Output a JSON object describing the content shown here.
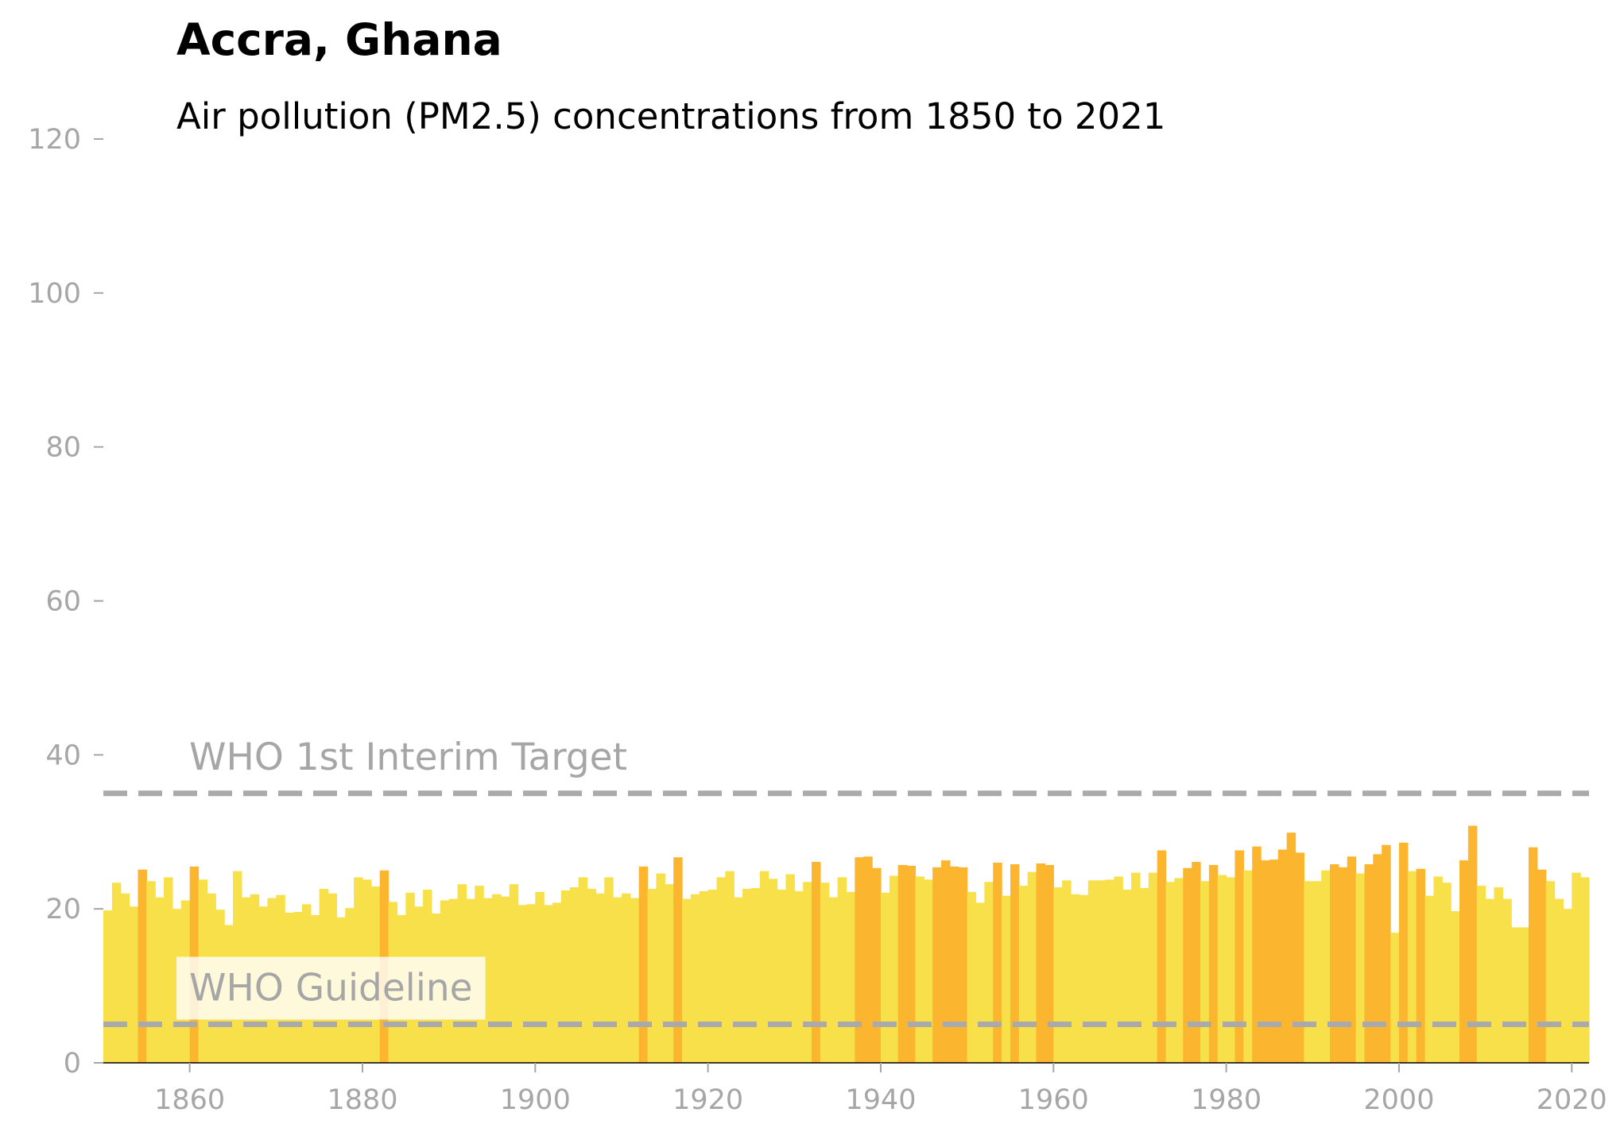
{
  "chart_data": {
    "type": "bar",
    "title": "Accra, Ghana",
    "subtitle": "Air pollution (PM2.5) concentrations from 1850 to 2021",
    "xlabel": "",
    "ylabel": "",
    "xlim": [
      1850,
      2022
    ],
    "ylim": [
      0,
      120
    ],
    "x_ticks": [
      1860,
      1880,
      1900,
      1920,
      1940,
      1960,
      1980,
      2000,
      2020
    ],
    "y_ticks": [
      0,
      20,
      40,
      60,
      80,
      100,
      120
    ],
    "grid": false,
    "colors": {
      "base": "#f7e04a",
      "high": "#fbb52e",
      "reference": "#aaaaaa",
      "tick": "#a6a6a6"
    },
    "reference_lines": [
      {
        "label": "WHO 1st Interim Target",
        "value": 35
      },
      {
        "label": "WHO Guideline",
        "value": 5
      }
    ],
    "years": [
      1850,
      1851,
      1852,
      1853,
      1854,
      1855,
      1856,
      1857,
      1858,
      1859,
      1860,
      1861,
      1862,
      1863,
      1864,
      1865,
      1866,
      1867,
      1868,
      1869,
      1870,
      1871,
      1872,
      1873,
      1874,
      1875,
      1876,
      1877,
      1878,
      1879,
      1880,
      1881,
      1882,
      1883,
      1884,
      1885,
      1886,
      1887,
      1888,
      1889,
      1890,
      1891,
      1892,
      1893,
      1894,
      1895,
      1896,
      1897,
      1898,
      1899,
      1900,
      1901,
      1902,
      1903,
      1904,
      1905,
      1906,
      1907,
      1908,
      1909,
      1910,
      1911,
      1912,
      1913,
      1914,
      1915,
      1916,
      1917,
      1918,
      1919,
      1920,
      1921,
      1922,
      1923,
      1924,
      1925,
      1926,
      1927,
      1928,
      1929,
      1930,
      1931,
      1932,
      1933,
      1934,
      1935,
      1936,
      1937,
      1938,
      1939,
      1940,
      1941,
      1942,
      1943,
      1944,
      1945,
      1946,
      1947,
      1948,
      1949,
      1950,
      1951,
      1952,
      1953,
      1954,
      1955,
      1956,
      1957,
      1958,
      1959,
      1960,
      1961,
      1962,
      1963,
      1964,
      1965,
      1966,
      1967,
      1968,
      1969,
      1970,
      1971,
      1972,
      1973,
      1974,
      1975,
      1976,
      1977,
      1978,
      1979,
      1980,
      1981,
      1982,
      1983,
      1984,
      1985,
      1986,
      1987,
      1988,
      1989,
      1990,
      1991,
      1992,
      1993,
      1994,
      1995,
      1996,
      1997,
      1998,
      1999,
      2000,
      2001,
      2002,
      2003,
      2004,
      2005,
      2006,
      2007,
      2008,
      2009,
      2010,
      2011,
      2012,
      2013,
      2014,
      2015,
      2016,
      2017,
      2018,
      2019,
      2020,
      2021
    ],
    "values": [
      19.8,
      23.4,
      22.0,
      20.3,
      25.1,
      23.6,
      21.5,
      24.1,
      20.0,
      21.1,
      25.5,
      23.8,
      22.0,
      19.9,
      17.9,
      24.9,
      21.5,
      21.9,
      20.3,
      21.4,
      21.8,
      19.5,
      19.6,
      20.6,
      19.2,
      22.6,
      22.0,
      18.9,
      20.1,
      24.1,
      23.8,
      22.9,
      25.0,
      20.9,
      19.2,
      22.1,
      20.3,
      22.5,
      19.4,
      21.1,
      21.3,
      23.2,
      21.3,
      23.0,
      21.4,
      21.9,
      21.6,
      23.2,
      20.5,
      20.6,
      22.2,
      20.5,
      20.8,
      22.4,
      22.8,
      24.1,
      22.6,
      22.0,
      24.1,
      21.5,
      22.0,
      21.4,
      25.5,
      22.6,
      24.6,
      23.2,
      26.7,
      21.3,
      21.9,
      22.3,
      22.5,
      24.1,
      24.9,
      21.5,
      22.6,
      22.7,
      24.9,
      23.9,
      22.5,
      24.5,
      22.3,
      23.5,
      26.1,
      23.4,
      21.5,
      24.1,
      22.2,
      26.7,
      26.8,
      25.3,
      22.1,
      24.3,
      25.7,
      25.6,
      24.2,
      23.8,
      25.4,
      26.3,
      25.5,
      25.4,
      22.2,
      20.8,
      23.5,
      26.0,
      21.7,
      25.8,
      23.0,
      24.8,
      25.9,
      25.7,
      22.8,
      23.7,
      21.9,
      21.8,
      23.7,
      23.7,
      23.8,
      24.2,
      22.5,
      24.7,
      22.7,
      24.7,
      27.6,
      23.5,
      24.0,
      25.3,
      26.1,
      23.6,
      25.7,
      24.4,
      24.1,
      27.6,
      25.0,
      28.1,
      26.3,
      26.4,
      27.7,
      29.9,
      27.3,
      23.6,
      23.6,
      25.0,
      25.8,
      25.4,
      26.8,
      24.6,
      25.8,
      27.1,
      28.3,
      16.9,
      28.6,
      24.9,
      25.2,
      21.7,
      24.2,
      23.4,
      19.7,
      26.3,
      30.8,
      23.0,
      21.3,
      22.8,
      21.3,
      17.6,
      17.6,
      28.0,
      25.1,
      23.6,
      21.3,
      20.0,
      24.7,
      24.1
    ],
    "highlighted_years": [
      1854,
      1860,
      1882,
      1912,
      1916,
      1932,
      1937,
      1938,
      1939,
      1942,
      1943,
      1946,
      1947,
      1948,
      1949,
      1953,
      1955,
      1958,
      1959,
      1972,
      1975,
      1976,
      1978,
      1981,
      1983,
      1984,
      1985,
      1986,
      1987,
      1988,
      1992,
      1993,
      1994,
      1996,
      1997,
      1998,
      2000,
      2002,
      2007,
      2008,
      2015,
      2016
    ]
  }
}
